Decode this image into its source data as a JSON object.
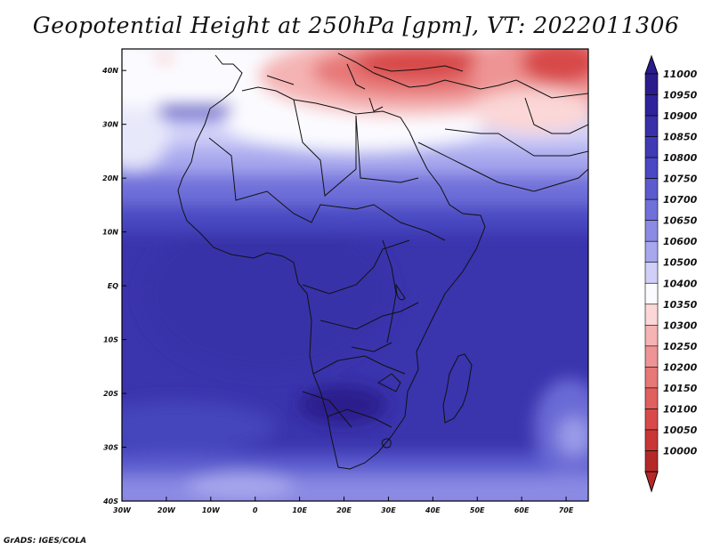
{
  "title": "Geopotential Height at 250hPa [gpm], VT: 2022011306",
  "credit": "GrADS: IGES/COLA",
  "map": {
    "lon_range": [
      -30,
      75
    ],
    "lat_range": [
      -40,
      44
    ],
    "lon_ticks": [
      {
        "value": -30,
        "label": "30W"
      },
      {
        "value": -20,
        "label": "20W"
      },
      {
        "value": -10,
        "label": "10W"
      },
      {
        "value": 0,
        "label": "0"
      },
      {
        "value": 10,
        "label": "10E"
      },
      {
        "value": 20,
        "label": "20E"
      },
      {
        "value": 30,
        "label": "30E"
      },
      {
        "value": 40,
        "label": "40E"
      },
      {
        "value": 50,
        "label": "50E"
      },
      {
        "value": 60,
        "label": "60E"
      },
      {
        "value": 70,
        "label": "70E"
      }
    ],
    "lat_ticks": [
      {
        "value": 40,
        "label": "40N"
      },
      {
        "value": 30,
        "label": "30N"
      },
      {
        "value": 20,
        "label": "20N"
      },
      {
        "value": 10,
        "label": "10N"
      },
      {
        "value": 0,
        "label": "EQ"
      },
      {
        "value": -10,
        "label": "10S"
      },
      {
        "value": -20,
        "label": "20S"
      },
      {
        "value": -30,
        "label": "30S"
      },
      {
        "value": -40,
        "label": "40S"
      }
    ]
  },
  "colorbar": {
    "levels": [
      {
        "label": "11000",
        "color": "#2a1c8c"
      },
      {
        "label": "10950",
        "color": "#2f239b"
      },
      {
        "label": "10900",
        "color": "#3730a8"
      },
      {
        "label": "10850",
        "color": "#3f3bb5"
      },
      {
        "label": "10800",
        "color": "#4a48c2"
      },
      {
        "label": "10750",
        "color": "#5b5bcf"
      },
      {
        "label": "10700",
        "color": "#7070da"
      },
      {
        "label": "10650",
        "color": "#8b8be4"
      },
      {
        "label": "10600",
        "color": "#a7a7ee"
      },
      {
        "label": "10500",
        "color": "#cfcff8"
      },
      {
        "label": "10400",
        "color": "#fbfbff"
      },
      {
        "label": "10350",
        "color": "#fbd7d7"
      },
      {
        "label": "10300",
        "color": "#f5b3b3"
      },
      {
        "label": "10250",
        "color": "#ee9494"
      },
      {
        "label": "10200",
        "color": "#e77878"
      },
      {
        "label": "10150",
        "color": "#e05f5f"
      },
      {
        "label": "10100",
        "color": "#d84a4a"
      },
      {
        "label": "10050",
        "color": "#c93636"
      },
      {
        "label": "10000",
        "color": "#b52828"
      }
    ]
  }
}
